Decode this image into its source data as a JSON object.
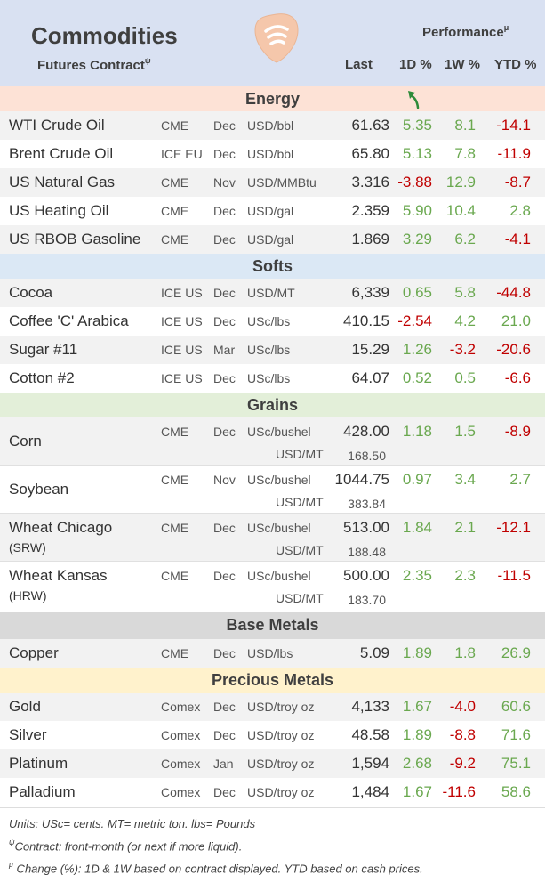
{
  "header": {
    "title": "Commodities",
    "subtitle": "Futures Contract",
    "subtitle_mark": "ψ",
    "performance": "Performance",
    "performance_mark": "μ",
    "col_last": "Last",
    "col_1d": "1D %",
    "col_1w": "1W %",
    "col_ytd": "YTD %"
  },
  "colors": {
    "positive": "#6aa84f",
    "negative": "#c00000",
    "energy_bg": "#fde2d6",
    "softs_bg": "#dbe8f5",
    "grains_bg": "#e3efd9",
    "base_bg": "#d9d9d9",
    "precious_bg": "#fff2cc"
  },
  "icons": {
    "logo": "guitar-pick-wifi-logo-icon",
    "arrow": "green-curved-arrow-icon"
  },
  "sections": {
    "energy": "Energy",
    "softs": "Softs",
    "grains": "Grains",
    "base_metals": "Base Metals",
    "precious_metals": "Precious Metals"
  },
  "energy": [
    {
      "name": "WTI Crude Oil",
      "exchange": "CME",
      "month": "Dec",
      "unit": "USD/bbl",
      "last": "61.63",
      "d1": "5.35",
      "w1": "8.1",
      "ytd": "-14.1"
    },
    {
      "name": "Brent Crude Oil",
      "exchange": "ICE EU",
      "month": "Dec",
      "unit": "USD/bbl",
      "last": "65.80",
      "d1": "5.13",
      "w1": "7.8",
      "ytd": "-11.9"
    },
    {
      "name": "US Natural Gas",
      "exchange": "CME",
      "month": "Nov",
      "unit": "USD/MMBtu",
      "last": "3.316",
      "d1": "-3.88",
      "w1": "12.9",
      "ytd": "-8.7"
    },
    {
      "name": "US Heating Oil",
      "exchange": "CME",
      "month": "Dec",
      "unit": "USD/gal",
      "last": "2.359",
      "d1": "5.90",
      "w1": "10.4",
      "ytd": "2.8"
    },
    {
      "name": "US RBOB Gasoline",
      "exchange": "CME",
      "month": "Dec",
      "unit": "USD/gal",
      "last": "1.869",
      "d1": "3.29",
      "w1": "6.2",
      "ytd": "-4.1"
    }
  ],
  "softs": [
    {
      "name": "Cocoa",
      "exchange": "ICE US",
      "month": "Dec",
      "unit": "USD/MT",
      "last": "6,339",
      "d1": "0.65",
      "w1": "5.8",
      "ytd": "-44.8"
    },
    {
      "name": "Coffee 'C' Arabica",
      "exchange": "ICE US",
      "month": "Dec",
      "unit": "USc/lbs",
      "last": "410.15",
      "d1": "-2.54",
      "w1": "4.2",
      "ytd": "21.0"
    },
    {
      "name": "Sugar #11",
      "exchange": "ICE US",
      "month": "Mar",
      "unit": "USc/lbs",
      "last": "15.29",
      "d1": "1.26",
      "w1": "-3.2",
      "ytd": "-20.6"
    },
    {
      "name": "Cotton #2",
      "exchange": "ICE US",
      "month": "Dec",
      "unit": "USc/lbs",
      "last": "64.07",
      "d1": "0.52",
      "w1": "0.5",
      "ytd": "-6.6"
    }
  ],
  "grains": [
    {
      "name": "Corn",
      "name2": "",
      "exchange": "CME",
      "month": "Dec",
      "unit": "USc/bushel",
      "last": "428.00",
      "unit2": "USD/MT",
      "last2": "168.50",
      "d1": "1.18",
      "w1": "1.5",
      "ytd": "-8.9"
    },
    {
      "name": "Soybean",
      "name2": "",
      "exchange": "CME",
      "month": "Nov",
      "unit": "USc/bushel",
      "last": "1044.75",
      "unit2": "USD/MT",
      "last2": "383.84",
      "d1": "0.97",
      "w1": "3.4",
      "ytd": "2.7"
    },
    {
      "name": "Wheat Chicago",
      "name2": "(SRW)",
      "exchange": "CME",
      "month": "Dec",
      "unit": "USc/bushel",
      "last": "513.00",
      "unit2": "USD/MT",
      "last2": "188.48",
      "d1": "1.84",
      "w1": "2.1",
      "ytd": "-12.1"
    },
    {
      "name": "Wheat Kansas",
      "name2": "(HRW)",
      "exchange": "CME",
      "month": "Dec",
      "unit": "USc/bushel",
      "last": "500.00",
      "unit2": "USD/MT",
      "last2": "183.70",
      "d1": "2.35",
      "w1": "2.3",
      "ytd": "-11.5"
    }
  ],
  "base_metals": [
    {
      "name": "Copper",
      "exchange": "CME",
      "month": "Dec",
      "unit": "USD/lbs",
      "last": "5.09",
      "d1": "1.89",
      "w1": "1.8",
      "ytd": "26.9"
    }
  ],
  "precious_metals": [
    {
      "name": "Gold",
      "exchange": "Comex",
      "month": "Dec",
      "unit": "USD/troy oz",
      "last": "4,133",
      "d1": "1.67",
      "w1": "-4.0",
      "ytd": "60.6"
    },
    {
      "name": "Silver",
      "exchange": "Comex",
      "month": "Dec",
      "unit": "USD/troy oz",
      "last": "48.58",
      "d1": "1.89",
      "w1": "-8.8",
      "ytd": "71.6"
    },
    {
      "name": "Platinum",
      "exchange": "Comex",
      "month": "Jan",
      "unit": "USD/troy oz",
      "last": "1,594",
      "d1": "2.68",
      "w1": "-9.2",
      "ytd": "75.1"
    },
    {
      "name": "Palladium",
      "exchange": "Comex",
      "month": "Dec",
      "unit": "USD/troy oz",
      "last": "1,484",
      "d1": "1.67",
      "w1": "-11.6",
      "ytd": "58.6"
    }
  ],
  "footer": {
    "units": "Units: USc= cents.  MT= metric ton.  lbs= Pounds",
    "contract_mark": "ψ",
    "contract": "Contract: front-month (or next if more liquid).",
    "change_mark": "μ",
    "change": " Change (%): 1D & 1W based on contract displayed. YTD based on cash prices."
  }
}
